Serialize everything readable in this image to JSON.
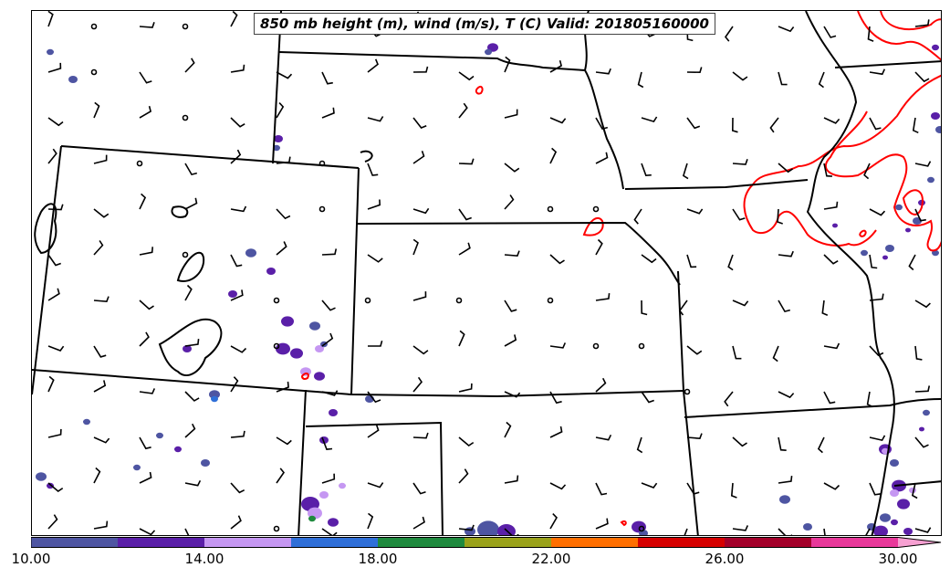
{
  "title": "850 mb height (m), wind (m/s), T (C) Valid: 201805160000",
  "colorbar": {
    "ticks": [
      "10.00",
      "14.00",
      "18.00",
      "22.00",
      "26.00",
      "30.00"
    ],
    "bins": [
      {
        "from": 10,
        "to": 12,
        "color": "#4e55a2"
      },
      {
        "from": 12,
        "to": 14,
        "color": "#5a1fa8"
      },
      {
        "from": 14,
        "to": 16,
        "color": "#c597f2"
      },
      {
        "from": 16,
        "to": 18,
        "color": "#2f6fd8"
      },
      {
        "from": 18,
        "to": 20,
        "color": "#1f8a3e"
      },
      {
        "from": 20,
        "to": 22,
        "color": "#9aa21a"
      },
      {
        "from": 22,
        "to": 24,
        "color": "#ff6f00"
      },
      {
        "from": 24,
        "to": 26,
        "color": "#d60000"
      },
      {
        "from": 26,
        "to": 28,
        "color": "#a3002a"
      },
      {
        "from": 28,
        "to": 30,
        "color": "#e8389a"
      },
      {
        "from": 30,
        "to": 32,
        "color": "#f7a0d2"
      }
    ],
    "extend": "max"
  },
  "map_colors": {
    "boundaries": "#000000",
    "temperature_contour": "#ff0000",
    "wind_barb": "#000000"
  }
}
